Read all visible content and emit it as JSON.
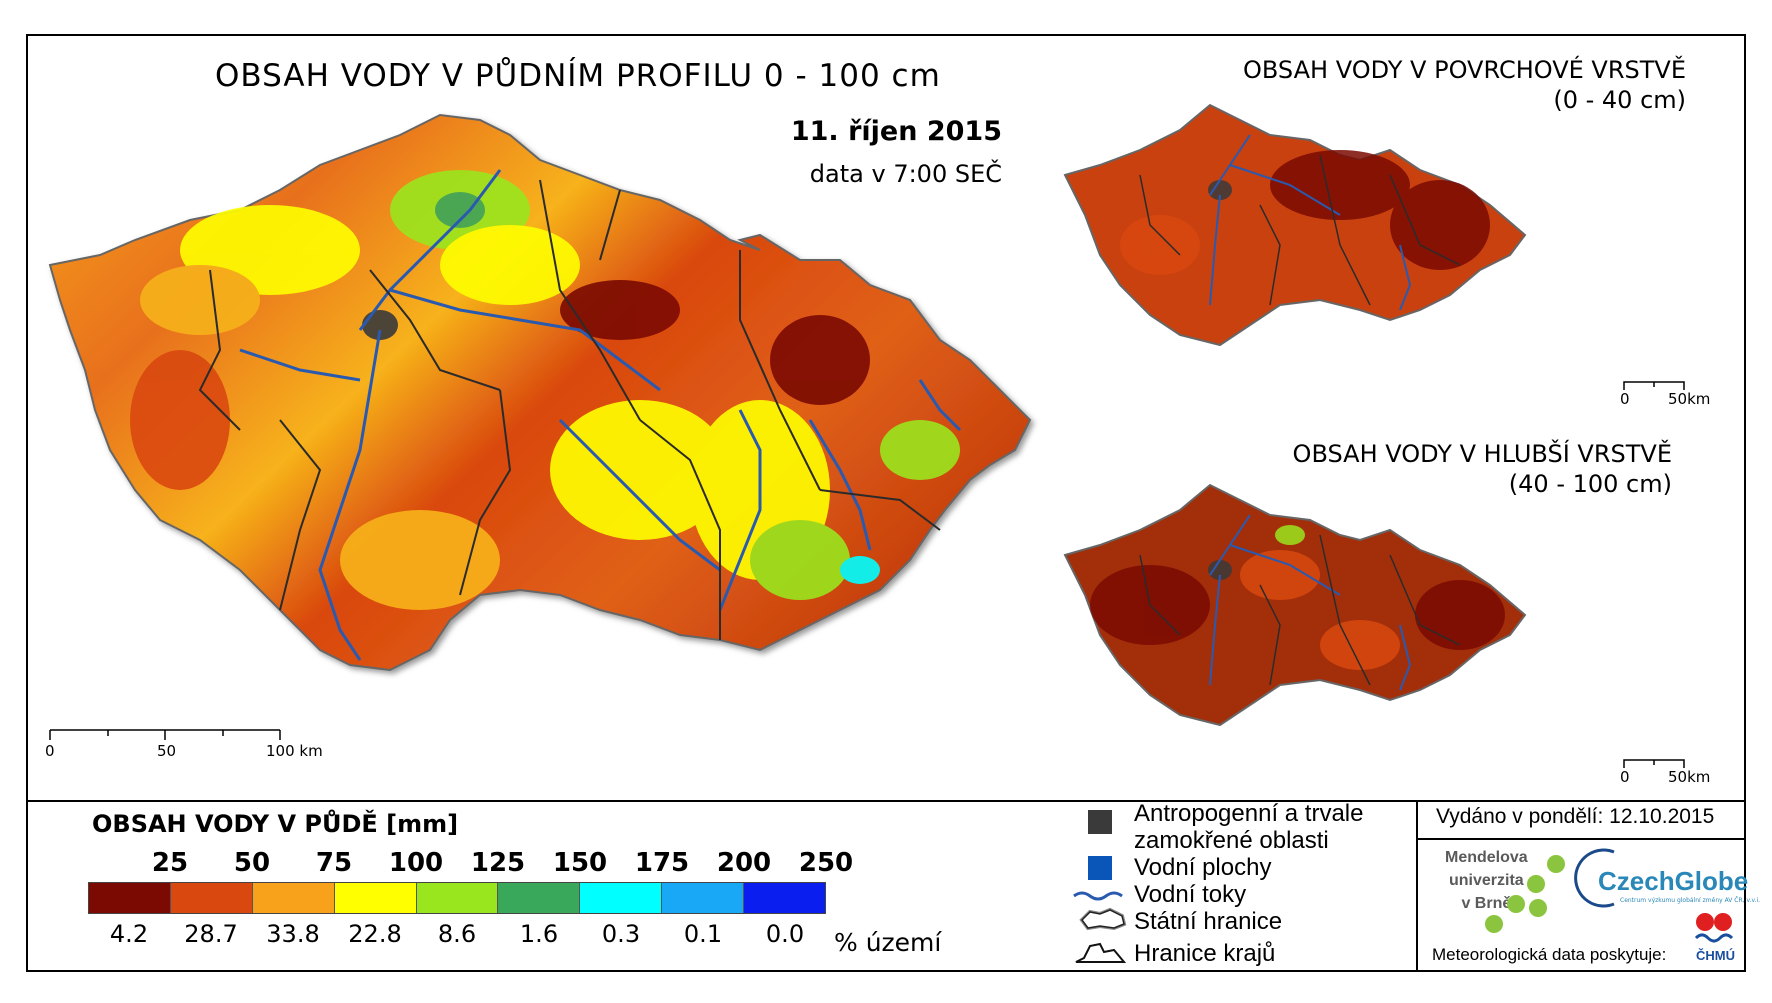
{
  "main": {
    "title": "OBSAH VODY V PŮDNÍM PROFILU 0 - 100 cm",
    "date": "11. říjen 2015",
    "time": "data v 7:00 SEČ",
    "scale": {
      "l0": "0",
      "l1": "50",
      "l2": "100 km"
    }
  },
  "top_right": {
    "title_line1": "OBSAH VODY V POVRCHOVÉ VRSTVĚ",
    "title_line2": "(0 - 40 cm)",
    "scale": {
      "l0": "0",
      "l1": "50km"
    }
  },
  "bottom_right": {
    "title_line1": "OBSAH VODY V HLUBŠÍ VRSTVĚ",
    "title_line2": "(40 - 100 cm)",
    "scale": {
      "l0": "0",
      "l1": "50km"
    }
  },
  "legend": {
    "title": "OBSAH VODY V PŮDĚ [mm]",
    "thresholds": [
      "25",
      "50",
      "75",
      "100",
      "125",
      "150",
      "175",
      "200",
      "250"
    ],
    "colors": [
      "#7b0a02",
      "#d9480f",
      "#f7a21a",
      "#ffff00",
      "#9ae61e",
      "#3aa85a",
      "#00ffff",
      "#18a8f5",
      "#0a1ef0"
    ],
    "percents": [
      "4.2",
      "28.7",
      "33.8",
      "22.8",
      "8.6",
      "1.6",
      "0.3",
      "0.1",
      "0.0"
    ],
    "percent_label": "% území"
  },
  "map_legend": {
    "anthro_line1": "Antropogenní a trvale",
    "anthro_line2": "zamokřené oblasti",
    "water_bodies": "Vodní plochy",
    "rivers": "Vodní toky",
    "state_border": "Státní hranice",
    "region_border": "Hranice krajů",
    "colors": {
      "anthro": "#3a3a3a",
      "water": "#0a56b8",
      "river": "#2a5ab0"
    }
  },
  "info": {
    "issued": "Vydáno v pondělí: 12.10.2015",
    "mendel_line1": "Mendelova",
    "mendel_line2": "univerzita",
    "mendel_line3": "v Brně",
    "czechglobe": "CzechGlobe",
    "czechglobe_sub": "Centrum výzkumu globální změny AV ČR, v.v.i.",
    "meteo": "Meteorologická data poskytuje:",
    "chmu": "ČHMÚ"
  }
}
